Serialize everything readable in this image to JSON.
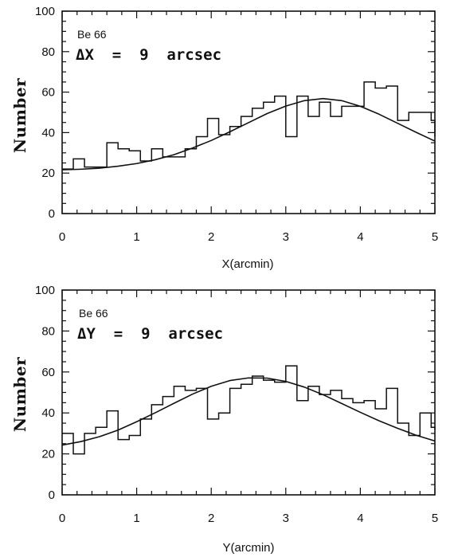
{
  "chart_data": [
    {
      "type": "line",
      "title": "",
      "xlabel": "X(arcmin)",
      "ylabel": "Number",
      "xlim": [
        0,
        5
      ],
      "ylim": [
        0,
        100
      ],
      "xticks": [
        "0",
        "1",
        "2",
        "3",
        "4",
        "5"
      ],
      "yticks": [
        "0",
        "20",
        "40",
        "60",
        "80",
        "100"
      ],
      "grid": false,
      "annotations": [
        "Be 66",
        "ΔX  =  9  arcsec"
      ],
      "histogram": {
        "bin_width": 0.15,
        "values": [
          22,
          27,
          23,
          23,
          35,
          32,
          31,
          26,
          32,
          28,
          28,
          32,
          38,
          47,
          39,
          43,
          48,
          52,
          55,
          58,
          38,
          58,
          48,
          55,
          48,
          53,
          53,
          65,
          62,
          63,
          46,
          50,
          50,
          46,
          38
        ]
      },
      "fit": {
        "x": [
          0,
          0.25,
          0.5,
          0.75,
          1.0,
          1.25,
          1.5,
          1.75,
          2.0,
          2.25,
          2.5,
          2.75,
          3.0,
          3.25,
          3.5,
          3.75,
          4.0,
          4.25,
          4.5,
          4.75,
          5.0
        ],
        "y": [
          21.6,
          21.9,
          22.4,
          23.4,
          24.7,
          26.6,
          29.1,
          32.4,
          36.1,
          40.4,
          44.9,
          49.4,
          53.1,
          55.8,
          56.8,
          55.8,
          53.0,
          49.1,
          44.6,
          40.1,
          35.8
        ]
      }
    },
    {
      "type": "line",
      "title": "",
      "xlabel": "Y(arcmin)",
      "ylabel": "Number",
      "xlim": [
        0,
        5
      ],
      "ylim": [
        0,
        100
      ],
      "xticks": [
        "0",
        "1",
        "2",
        "3",
        "4",
        "5"
      ],
      "yticks": [
        "0",
        "20",
        "40",
        "60",
        "80",
        "100"
      ],
      "grid": false,
      "annotations": [
        "Be 66",
        "ΔY  =  9  arcsec"
      ],
      "histogram": {
        "bin_width": 0.15,
        "values": [
          30,
          20,
          30,
          33,
          41,
          27,
          29,
          37,
          44,
          48,
          53,
          51,
          52,
          37,
          40,
          52,
          54,
          58,
          56,
          55,
          63,
          46,
          53,
          49,
          51,
          47,
          45,
          46,
          42,
          52,
          35,
          29,
          40,
          33,
          32
        ]
      },
      "fit": {
        "x": [
          0,
          0.25,
          0.5,
          0.75,
          1.0,
          1.25,
          1.5,
          1.75,
          2.0,
          2.25,
          2.5,
          2.75,
          3.0,
          3.25,
          3.5,
          3.75,
          4.0,
          4.25,
          4.5,
          4.75,
          5.0
        ],
        "y": [
          24.3,
          26.0,
          28.4,
          31.6,
          35.7,
          40.1,
          44.7,
          49.2,
          53.0,
          55.8,
          57.1,
          57.0,
          55.4,
          52.6,
          48.9,
          44.6,
          40.3,
          36.2,
          32.5,
          29.1,
          26.3
        ]
      }
    }
  ],
  "colors": {
    "ink": "#111111",
    "background": "#ffffff"
  }
}
